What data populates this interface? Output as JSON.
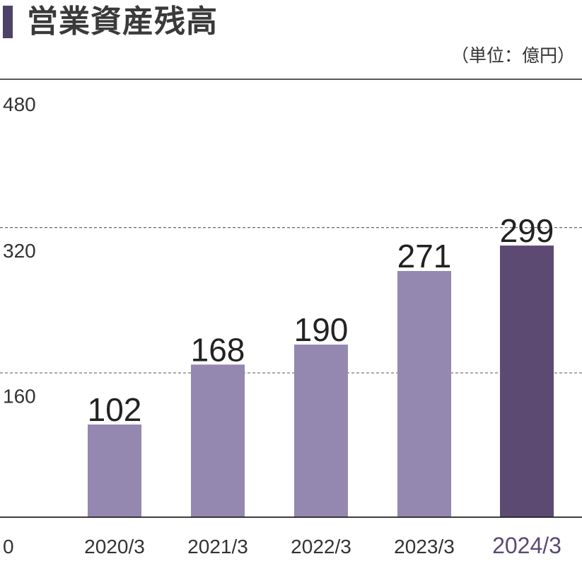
{
  "title": "営業資産残高",
  "unit_label": "（単位：億円）",
  "chart_data": {
    "type": "bar",
    "title": "営業資産残高",
    "xlabel": "",
    "ylabel": "",
    "unit": "億円",
    "categories": [
      "2020/3",
      "2021/3",
      "2022/3",
      "2023/3",
      "2024/3"
    ],
    "values": [
      102,
      168,
      190,
      271,
      299
    ],
    "yticks": [
      0,
      160,
      320,
      480
    ],
    "ylim": [
      0,
      480
    ],
    "grid": "dashed horizontal at 160 and 320",
    "highlight_category": "2024/3"
  },
  "colors": {
    "bar": "#9488b1",
    "bar_highlight": "#5c4a73",
    "title_accent": "#4f4268",
    "highlight_label": "#5c4a73",
    "text": "#333333",
    "axis_line": "#222222",
    "grid": "#666666"
  }
}
